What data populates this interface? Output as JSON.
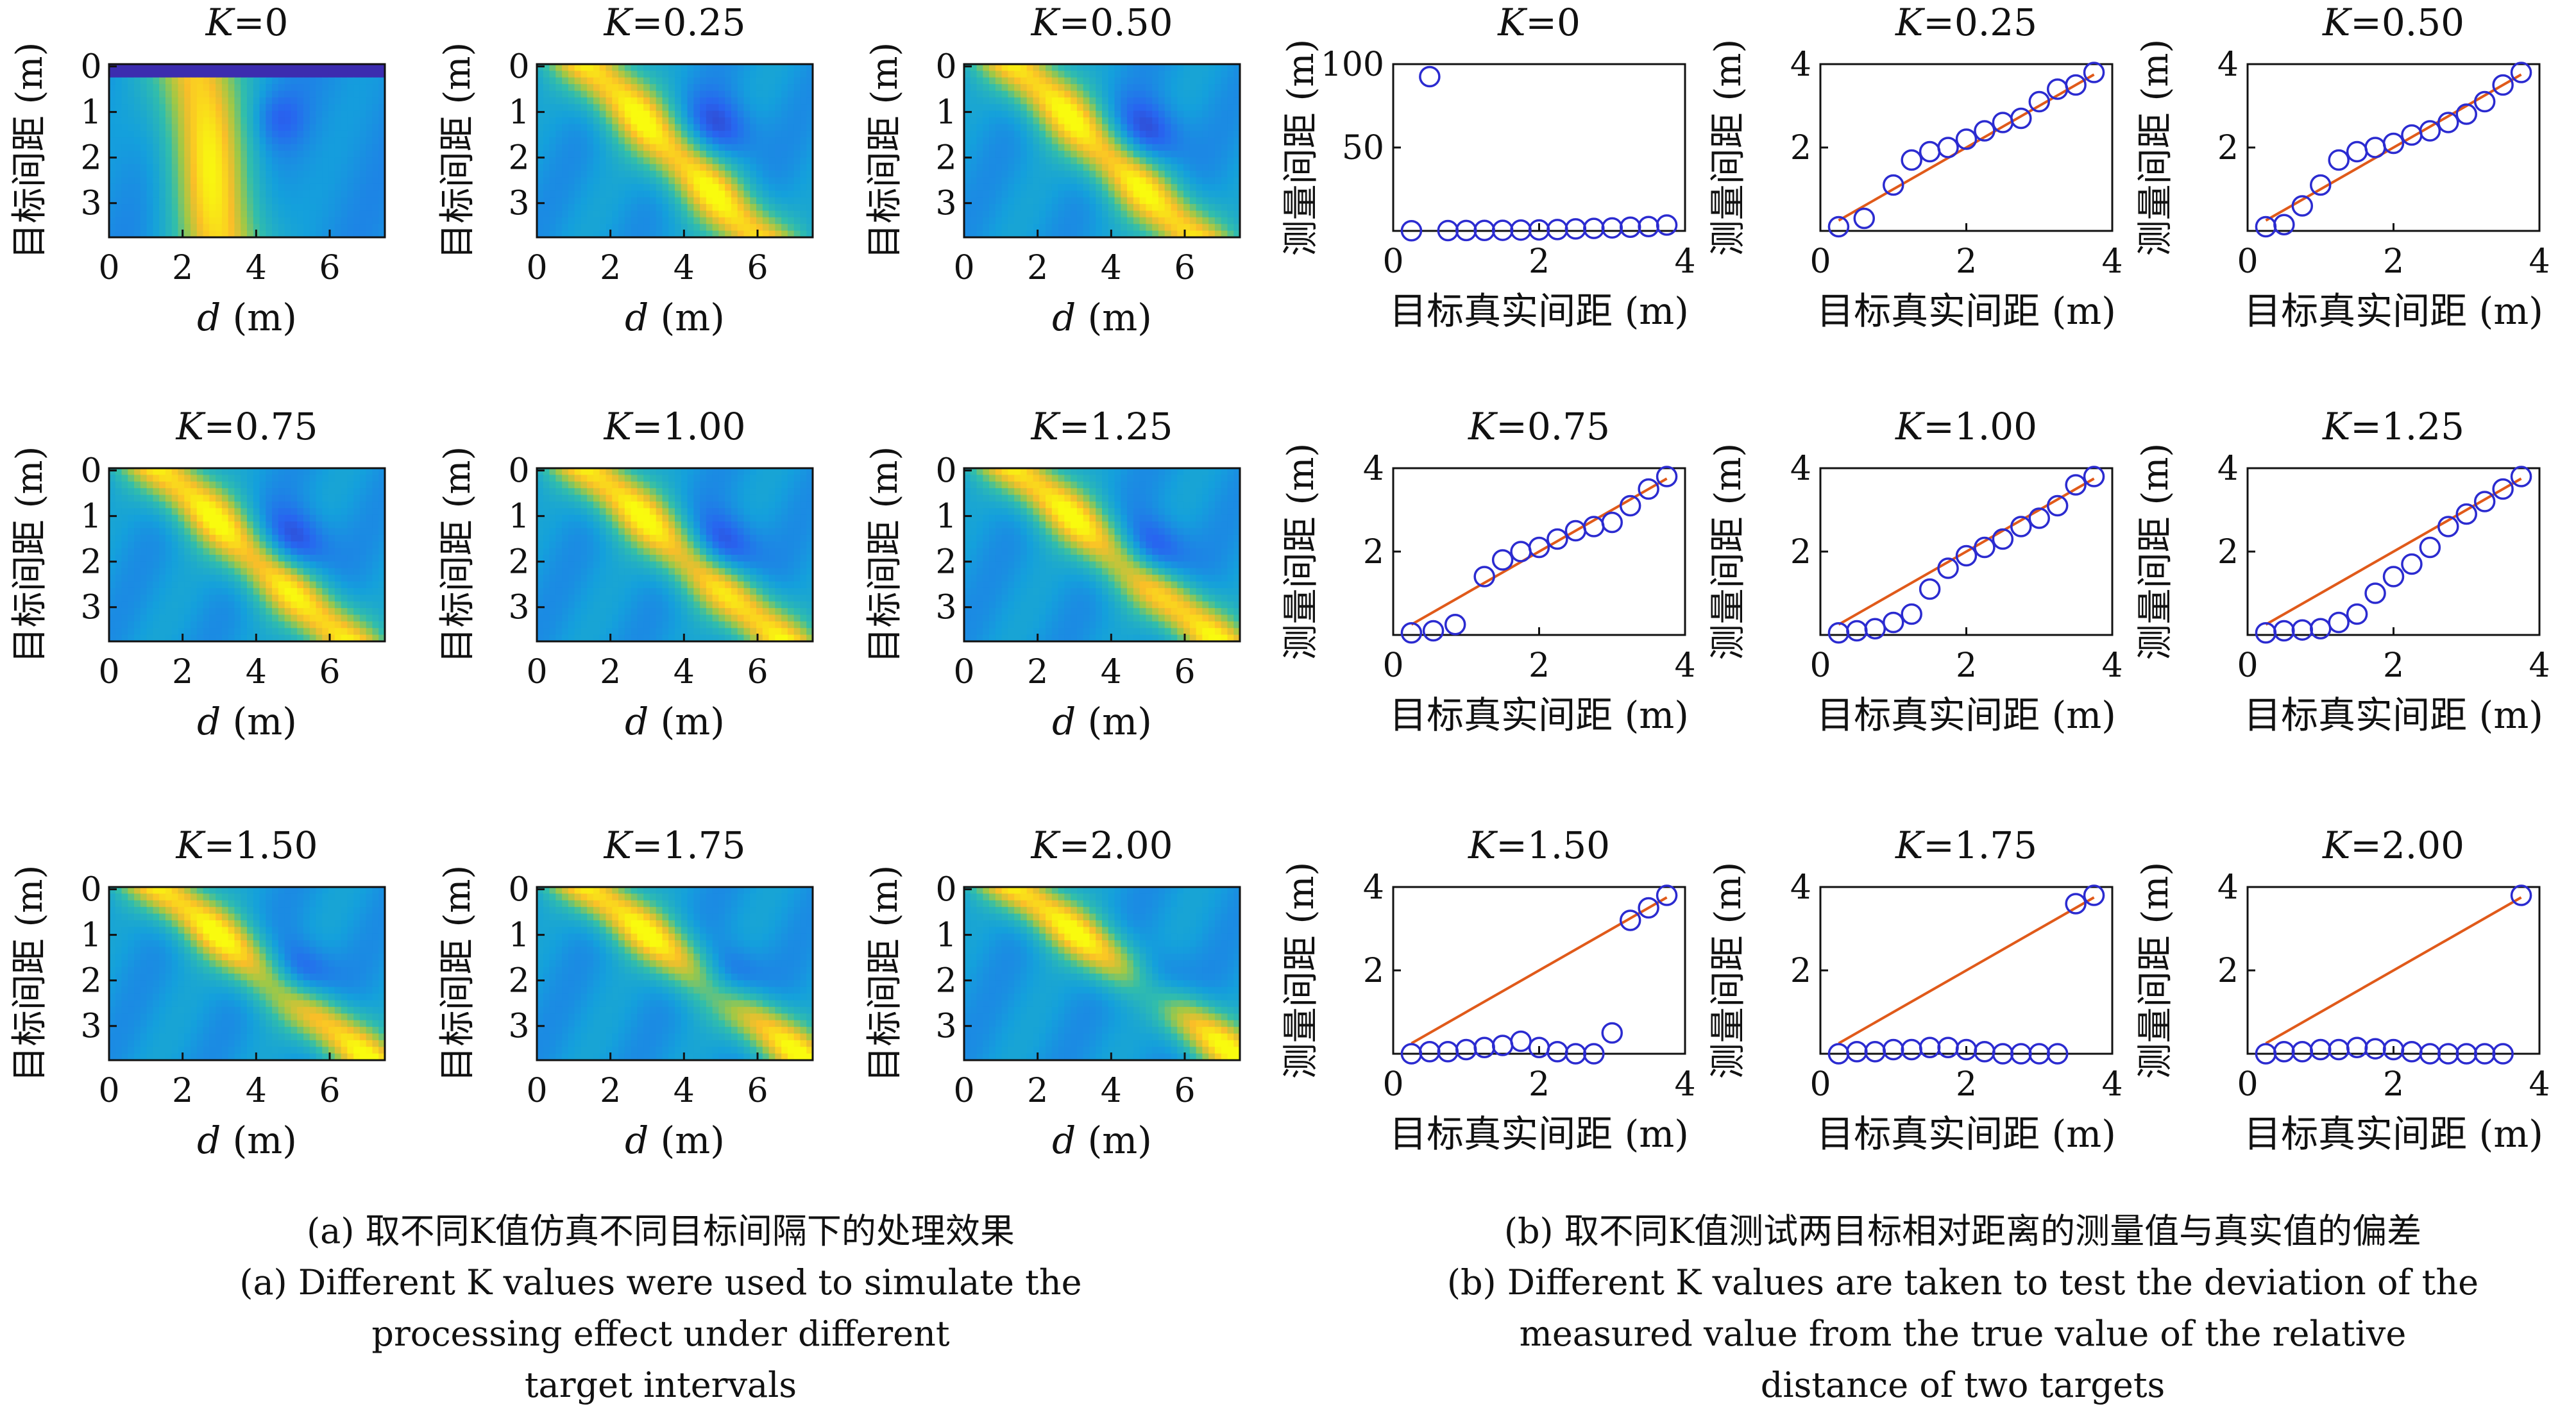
{
  "panel_a": {
    "ylabel": "目标间距 (m)",
    "xlabel": "d (m)",
    "xticks": [
      "0",
      "2",
      "4",
      "6"
    ],
    "yticks": [
      "0",
      "1",
      "2",
      "3"
    ],
    "caption_zh": "(a) 取不同K值仿真不同目标间隔下的处理效果",
    "caption_en": [
      "(a) Different K values were used to simulate the",
      "processing effect under different",
      "target intervals"
    ]
  },
  "panel_b": {
    "xlabel": "目标真实间距 (m)",
    "ylabel": "测量间距 (m)",
    "caption_zh": "(b) 取不同K值测试两目标相对距离的测量值与真实值的偏差",
    "caption_en": [
      "(b) Different K values are taken to test the deviation of the",
      "measured value from the true value of the relative",
      "distance of two targets"
    ]
  },
  "colors": {
    "marker": "#2b2bd0",
    "line": "#e05a1a",
    "high": "#ffff10",
    "low": "#3c1da8"
  },
  "chart_data": [
    {
      "type": "heatmap",
      "title": "K=0",
      "xlabel": "d (m)",
      "ylabel": "目标间距 (m)",
      "xlim": [
        0,
        7.5
      ],
      "ylim": [
        0,
        3.8
      ],
      "K": 0
    },
    {
      "type": "heatmap",
      "title": "K=0.25",
      "xlabel": "d (m)",
      "ylabel": "目标间距 (m)",
      "xlim": [
        0,
        7.5
      ],
      "ylim": [
        0,
        3.8
      ],
      "K": 0.25
    },
    {
      "type": "heatmap",
      "title": "K=0.50",
      "xlabel": "d (m)",
      "ylabel": "目标间距 (m)",
      "xlim": [
        0,
        7.5
      ],
      "ylim": [
        0,
        3.8
      ],
      "K": 0.5
    },
    {
      "type": "heatmap",
      "title": "K=0.75",
      "xlabel": "d (m)",
      "ylabel": "目标间距 (m)",
      "xlim": [
        0,
        7.5
      ],
      "ylim": [
        0,
        3.8
      ],
      "K": 0.75
    },
    {
      "type": "heatmap",
      "title": "K=1.00",
      "xlabel": "d (m)",
      "ylabel": "目标间距 (m)",
      "xlim": [
        0,
        7.5
      ],
      "ylim": [
        0,
        3.8
      ],
      "K": 1.0
    },
    {
      "type": "heatmap",
      "title": "K=1.25",
      "xlabel": "d (m)",
      "ylabel": "目标间距 (m)",
      "xlim": [
        0,
        7.5
      ],
      "ylim": [
        0,
        3.8
      ],
      "K": 1.25
    },
    {
      "type": "heatmap",
      "title": "K=1.50",
      "xlabel": "d (m)",
      "ylabel": "目标间距 (m)",
      "xlim": [
        0,
        7.5
      ],
      "ylim": [
        0,
        3.8
      ],
      "K": 1.5
    },
    {
      "type": "heatmap",
      "title": "K=1.75",
      "xlabel": "d (m)",
      "ylabel": "目标间距 (m)",
      "xlim": [
        0,
        7.5
      ],
      "ylim": [
        0,
        3.8
      ],
      "K": 1.75
    },
    {
      "type": "heatmap",
      "title": "K=2.00",
      "xlabel": "d (m)",
      "ylabel": "目标间距 (m)",
      "xlim": [
        0,
        7.5
      ],
      "ylim": [
        0,
        3.8
      ],
      "K": 2.0
    },
    {
      "type": "scatter",
      "title": "K=0",
      "xlabel": "目标真实间距 (m)",
      "ylabel": "测量间距 (m)",
      "xlim": [
        0,
        4
      ],
      "ylim": [
        0,
        100
      ],
      "xticks": [
        "0",
        "2",
        "4"
      ],
      "yticks": [
        "50",
        "100"
      ],
      "fit_line": false,
      "x": [
        0.25,
        0.5,
        0.75,
        1.0,
        1.25,
        1.5,
        1.75,
        2.0,
        2.25,
        2.5,
        2.75,
        3.0,
        3.25,
        3.5,
        3.75
      ],
      "y": [
        0.1,
        92.5,
        0.2,
        0.25,
        0.3,
        0.35,
        0.5,
        0.6,
        0.8,
        1.2,
        1.5,
        1.8,
        2.2,
        2.6,
        3.5
      ]
    },
    {
      "type": "scatter",
      "title": "K=0.25",
      "xlabel": "目标真实间距 (m)",
      "ylabel": "测量间距 (m)",
      "xlim": [
        0,
        4
      ],
      "ylim": [
        0,
        4
      ],
      "xticks": [
        "0",
        "2",
        "4"
      ],
      "yticks": [
        "2",
        "4"
      ],
      "fit_line": true,
      "x": [
        0.25,
        0.6,
        1.0,
        1.25,
        1.5,
        1.75,
        2.0,
        2.25,
        2.5,
        2.75,
        3.0,
        3.25,
        3.5,
        3.75
      ],
      "y": [
        0.1,
        0.3,
        1.1,
        1.7,
        1.9,
        2.0,
        2.2,
        2.4,
        2.6,
        2.7,
        3.1,
        3.4,
        3.5,
        3.8
      ]
    },
    {
      "type": "scatter",
      "title": "K=0.50",
      "xlabel": "目标真实间距 (m)",
      "ylabel": "测量间距 (m)",
      "xlim": [
        0,
        4
      ],
      "ylim": [
        0,
        4
      ],
      "xticks": [
        "0",
        "2",
        "4"
      ],
      "yticks": [
        "2",
        "4"
      ],
      "fit_line": true,
      "x": [
        0.25,
        0.5,
        0.75,
        1.0,
        1.25,
        1.5,
        1.75,
        2.0,
        2.25,
        2.5,
        2.75,
        3.0,
        3.25,
        3.5,
        3.75
      ],
      "y": [
        0.1,
        0.15,
        0.6,
        1.1,
        1.7,
        1.9,
        2.0,
        2.1,
        2.3,
        2.4,
        2.6,
        2.8,
        3.1,
        3.5,
        3.8
      ]
    },
    {
      "type": "scatter",
      "title": "K=0.75",
      "xlabel": "目标真实间距 (m)",
      "ylabel": "测量间距 (m)",
      "xlim": [
        0,
        4
      ],
      "ylim": [
        0,
        4
      ],
      "xticks": [
        "0",
        "2",
        "4"
      ],
      "yticks": [
        "2",
        "4"
      ],
      "fit_line": true,
      "x": [
        0.25,
        0.55,
        0.85,
        1.25,
        1.5,
        1.75,
        2.0,
        2.25,
        2.5,
        2.75,
        3.0,
        3.25,
        3.5,
        3.75
      ],
      "y": [
        0.05,
        0.1,
        0.25,
        1.4,
        1.8,
        2.0,
        2.1,
        2.3,
        2.5,
        2.6,
        2.7,
        3.1,
        3.5,
        3.8
      ]
    },
    {
      "type": "scatter",
      "title": "K=1.00",
      "xlabel": "目标真实间距 (m)",
      "ylabel": "测量间距 (m)",
      "xlim": [
        0,
        4
      ],
      "ylim": [
        0,
        4
      ],
      "xticks": [
        "0",
        "2",
        "4"
      ],
      "yticks": [
        "2",
        "4"
      ],
      "fit_line": true,
      "x": [
        0.25,
        0.5,
        0.75,
        1.0,
        1.25,
        1.5,
        1.75,
        2.0,
        2.25,
        2.5,
        2.75,
        3.0,
        3.25,
        3.5,
        3.75
      ],
      "y": [
        0.05,
        0.1,
        0.15,
        0.3,
        0.5,
        1.1,
        1.6,
        1.9,
        2.1,
        2.3,
        2.6,
        2.8,
        3.1,
        3.6,
        3.8
      ]
    },
    {
      "type": "scatter",
      "title": "K=1.25",
      "xlabel": "目标真实间距 (m)",
      "ylabel": "测量间距 (m)",
      "xlim": [
        0,
        4
      ],
      "ylim": [
        0,
        4
      ],
      "xticks": [
        "0",
        "2",
        "4"
      ],
      "yticks": [
        "2",
        "4"
      ],
      "fit_line": true,
      "x": [
        0.25,
        0.5,
        0.75,
        1.0,
        1.25,
        1.5,
        1.75,
        2.0,
        2.25,
        2.5,
        2.75,
        3.0,
        3.25,
        3.5,
        3.75
      ],
      "y": [
        0.05,
        0.1,
        0.12,
        0.15,
        0.3,
        0.5,
        1.0,
        1.4,
        1.7,
        2.1,
        2.6,
        2.9,
        3.2,
        3.5,
        3.8
      ]
    },
    {
      "type": "scatter",
      "title": "K=1.50",
      "xlabel": "目标真实间距 (m)",
      "ylabel": "测量间距 (m)",
      "xlim": [
        0,
        4
      ],
      "ylim": [
        0,
        4
      ],
      "xticks": [
        "0",
        "2",
        "4"
      ],
      "yticks": [
        "2",
        "4"
      ],
      "fit_line": true,
      "x": [
        0.25,
        0.5,
        0.75,
        1.0,
        1.25,
        1.5,
        1.75,
        2.0,
        2.25,
        2.5,
        2.75,
        3.0,
        3.25,
        3.5,
        3.75
      ],
      "y": [
        0.0,
        0.05,
        0.05,
        0.1,
        0.15,
        0.2,
        0.3,
        0.15,
        0.05,
        0.0,
        0.0,
        0.5,
        3.2,
        3.5,
        3.8
      ]
    },
    {
      "type": "scatter",
      "title": "K=1.75",
      "xlabel": "目标真实间距 (m)",
      "ylabel": "测量间距 (m)",
      "xlim": [
        0,
        4
      ],
      "ylim": [
        0,
        4
      ],
      "xticks": [
        "0",
        "2",
        "4"
      ],
      "yticks": [
        "2",
        "4"
      ],
      "fit_line": true,
      "x": [
        0.25,
        0.5,
        0.75,
        1.0,
        1.25,
        1.5,
        1.75,
        2.0,
        2.25,
        2.5,
        2.75,
        3.0,
        3.25,
        3.5,
        3.75
      ],
      "y": [
        0.0,
        0.05,
        0.05,
        0.1,
        0.1,
        0.15,
        0.15,
        0.1,
        0.05,
        0.0,
        0.0,
        0.0,
        0.0,
        3.6,
        3.8
      ]
    },
    {
      "type": "scatter",
      "title": "K=2.00",
      "xlabel": "目标真实间距 (m)",
      "ylabel": "测量间距 (m)",
      "xlim": [
        0,
        4
      ],
      "ylim": [
        0,
        4
      ],
      "xticks": [
        "0",
        "2",
        "4"
      ],
      "yticks": [
        "2",
        "4"
      ],
      "fit_line": true,
      "x": [
        0.25,
        0.5,
        0.75,
        1.0,
        1.25,
        1.5,
        1.75,
        2.0,
        2.25,
        2.5,
        2.75,
        3.0,
        3.25,
        3.5,
        3.75
      ],
      "y": [
        0.0,
        0.05,
        0.05,
        0.1,
        0.1,
        0.15,
        0.12,
        0.1,
        0.05,
        0.0,
        0.0,
        0.0,
        0.0,
        0.0,
        3.8
      ]
    }
  ]
}
